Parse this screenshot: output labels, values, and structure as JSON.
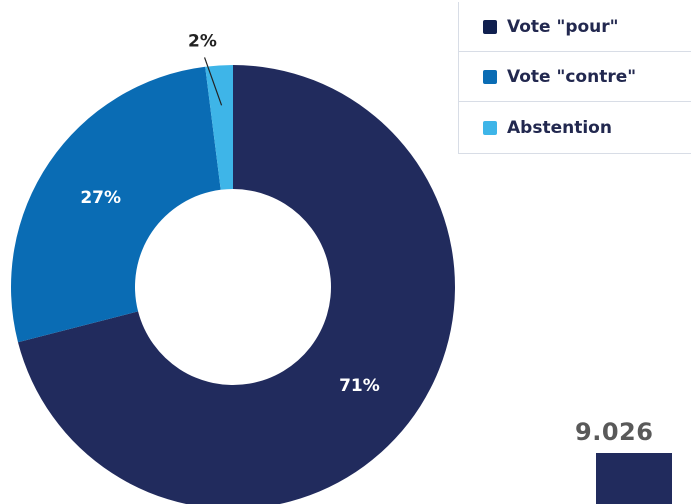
{
  "chart_data": {
    "type": "pie",
    "variant": "donut",
    "categories": [
      "Vote \"pour\"",
      "Vote \"contre\"",
      "Abstention"
    ],
    "values": [
      71,
      27,
      2
    ],
    "labels": [
      "71%",
      "27%",
      "2%"
    ],
    "colors": [
      "#212b5d",
      "#0a6cb4",
      "#3eb5e8"
    ],
    "legend_position": "top-right"
  },
  "legend": {
    "items": [
      {
        "label": "Vote \"pour\"",
        "color": "#10204f"
      },
      {
        "label": "Vote \"contre\"",
        "color": "#0a6cb4"
      },
      {
        "label": "Abstention",
        "color": "#3eb5e8"
      }
    ]
  },
  "total": {
    "value": "9.026",
    "color": "#212b5d"
  }
}
